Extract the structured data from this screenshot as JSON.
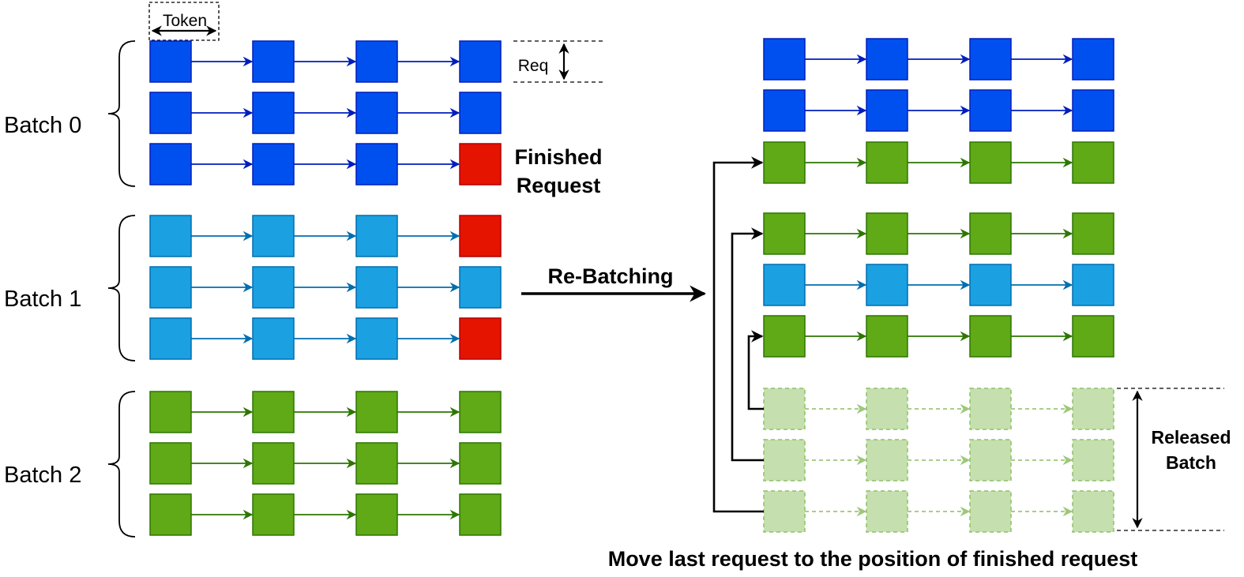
{
  "labels": {
    "token": "Token",
    "req": "Req",
    "finished_line1": "Finished",
    "finished_line2": "Request",
    "rebatching": "Re-Batching",
    "released_line1": "Released",
    "released_line2": "Batch",
    "caption": "Move last request to the position of finished request"
  },
  "left_batches": [
    {
      "label": "Batch 0",
      "rows": [
        "blue",
        "blue",
        "blue-finished"
      ]
    },
    {
      "label": "Batch 1",
      "rows": [
        "lightblue-finished",
        "lightblue",
        "lightblue-finished"
      ]
    },
    {
      "label": "Batch 2",
      "rows": [
        "green",
        "green",
        "green"
      ]
    }
  ],
  "right_rows": [
    "blue",
    "blue",
    "green",
    "green",
    "lightblue",
    "green",
    "released",
    "released",
    "released"
  ],
  "tokens_per_request": 4,
  "colors": {
    "blue": "#0050EF",
    "blue_stroke": "#001DBC",
    "lightblue": "#1BA1E2",
    "lightblue_stroke": "#006EAF",
    "green": "#60A917",
    "green_stroke": "#2D7600",
    "red": "#E51400",
    "red_stroke": "#B20000",
    "released_fill": "#C5E0AE",
    "released_stroke": "#8FBF6A"
  }
}
